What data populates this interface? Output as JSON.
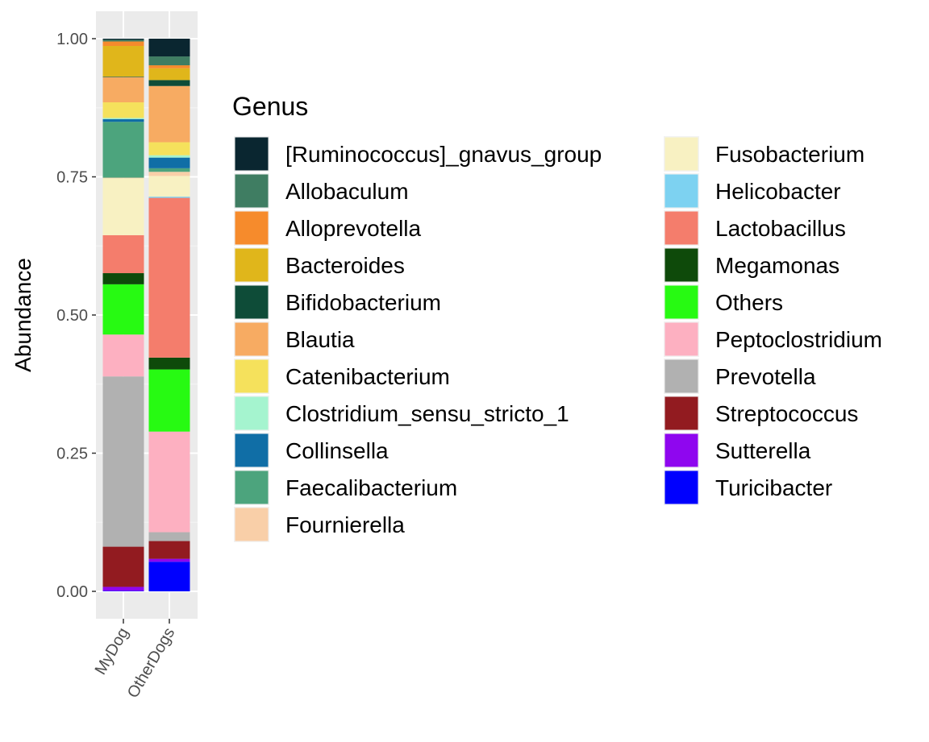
{
  "chart_data": {
    "type": "bar",
    "stacked": true,
    "title": "",
    "xlabel": "",
    "ylabel": "Abundance",
    "ylim": [
      0,
      1
    ],
    "y_ticks": [
      "0.00",
      "0.25",
      "0.50",
      "0.75",
      "1.00"
    ],
    "categories": [
      "MyDog",
      "OtherDogs"
    ],
    "legend_title": "Genus",
    "legend_position": "right",
    "grid": true,
    "series": [
      {
        "name": "[Ruminococcus]_gnavus_group",
        "color": "#0a2630",
        "values": [
          0.002,
          0.03
        ]
      },
      {
        "name": "Allobaculum",
        "color": "#3f7d62",
        "values": [
          0.003,
          0.015
        ]
      },
      {
        "name": "Alloprevotella",
        "color": "#f68b2c",
        "values": [
          0.008,
          0.005
        ]
      },
      {
        "name": "Bacteroides",
        "color": "#e0b61b",
        "values": [
          0.055,
          0.02
        ]
      },
      {
        "name": "Bifidobacterium",
        "color": "#0e4c38",
        "values": [
          0.001,
          0.01
        ]
      },
      {
        "name": "Blautia",
        "color": "#f7ab62",
        "values": [
          0.045,
          0.095
        ]
      },
      {
        "name": "Catenibacterium",
        "color": "#f5e15c",
        "values": [
          0.028,
          0.022
        ]
      },
      {
        "name": "Clostridium_sensu_stricto_1",
        "color": "#a5f4cf",
        "values": [
          0.002,
          0.004
        ]
      },
      {
        "name": "Collinsella",
        "color": "#106ea6",
        "values": [
          0.005,
          0.018
        ]
      },
      {
        "name": "Faecalibacterium",
        "color": "#4ca47d",
        "values": [
          0.1,
          0.006
        ]
      },
      {
        "name": "Fournierella",
        "color": "#f9cfa8",
        "values": [
          0.001,
          0.007
        ]
      },
      {
        "name": "Fusobacterium",
        "color": "#f8f1c2",
        "values": [
          0.102,
          0.035
        ]
      },
      {
        "name": "Helicobacter",
        "color": "#7dd2f1",
        "values": [
          0.0,
          0.002
        ]
      },
      {
        "name": "Lactobacillus",
        "color": "#f47d6c",
        "values": [
          0.068,
          0.27
        ]
      },
      {
        "name": "Megamonas",
        "color": "#0e4a0a",
        "values": [
          0.02,
          0.02
        ]
      },
      {
        "name": "Others",
        "color": "#27fa12",
        "values": [
          0.09,
          0.105
        ]
      },
      {
        "name": "Peptoclostridium",
        "color": "#fdb0c1",
        "values": [
          0.075,
          0.17
        ]
      },
      {
        "name": "Prevotella",
        "color": "#b1b1b1",
        "values": [
          0.305,
          0.015
        ]
      },
      {
        "name": "Streptococcus",
        "color": "#921b20",
        "values": [
          0.072,
          0.03
        ]
      },
      {
        "name": "Sutterella",
        "color": "#8f06ef",
        "values": [
          0.007,
          0.005
        ]
      },
      {
        "name": "Turicibacter",
        "color": "#0000fe",
        "values": [
          0.001,
          0.05
        ]
      }
    ]
  }
}
